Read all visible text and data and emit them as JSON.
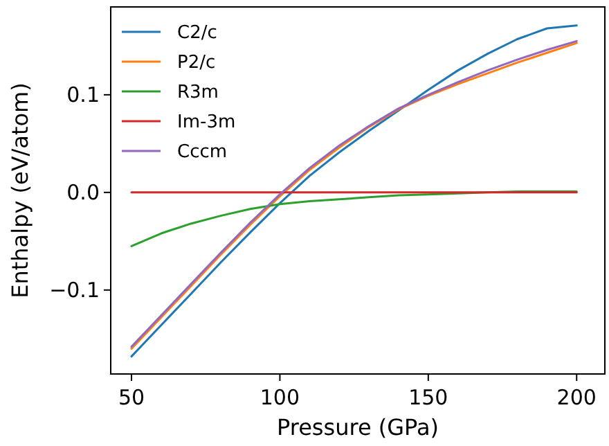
{
  "chart_data": {
    "type": "line",
    "xlabel": "Pressure (GPa)",
    "ylabel": "Enthalpy (eV/atom)",
    "x": [
      50,
      60,
      70,
      80,
      90,
      100,
      110,
      120,
      130,
      140,
      150,
      160,
      170,
      180,
      190,
      200
    ],
    "xlim": [
      43,
      209.5
    ],
    "xticks": [
      50,
      100,
      150,
      200
    ],
    "ylim": [
      -0.186,
      0.19
    ],
    "yticks": [
      {
        "value": -0.1,
        "label": "−0.1"
      },
      {
        "value": 0,
        "label": "0.0"
      },
      {
        "value": 0.1,
        "label": "0.1"
      }
    ],
    "grid": false,
    "legend": "top left",
    "line_style": "solid",
    "marker": "none",
    "series": [
      {
        "name": "C2/c",
        "color": "#1f77b4",
        "values": [
          -0.168,
          -0.136,
          -0.104,
          -0.072,
          -0.041,
          -0.011,
          0.017,
          0.041,
          0.063,
          0.084,
          0.105,
          0.125,
          0.142,
          0.157,
          0.168,
          0.171
        ]
      },
      {
        "name": "P2/c",
        "color": "#ff7f0e",
        "values": [
          -0.16,
          -0.128,
          -0.096,
          -0.064,
          -0.033,
          -0.004,
          0.023,
          0.046,
          0.067,
          0.085,
          0.099,
          0.111,
          0.122,
          0.133,
          0.143,
          0.153
        ]
      },
      {
        "name": "R3m",
        "color": "#2ca02c",
        "values": [
          -0.055,
          -0.042,
          -0.032,
          -0.024,
          -0.017,
          -0.012,
          -0.009,
          -0.007,
          -0.005,
          -0.003,
          -0.002,
          -0.001,
          0,
          0.001,
          0.001,
          0.001
        ]
      },
      {
        "name": "Im-3m",
        "color": "#d62728",
        "values": [
          0,
          0,
          0,
          0,
          0,
          0,
          0,
          0,
          0,
          0,
          0,
          0,
          0,
          0,
          0,
          0
        ]
      },
      {
        "name": "Cccm",
        "color": "#9467bd",
        "values": [
          -0.158,
          -0.126,
          -0.094,
          -0.062,
          -0.031,
          -0.002,
          0.025,
          0.048,
          0.068,
          0.086,
          0.1,
          0.113,
          0.125,
          0.136,
          0.146,
          0.155
        ]
      }
    ]
  }
}
